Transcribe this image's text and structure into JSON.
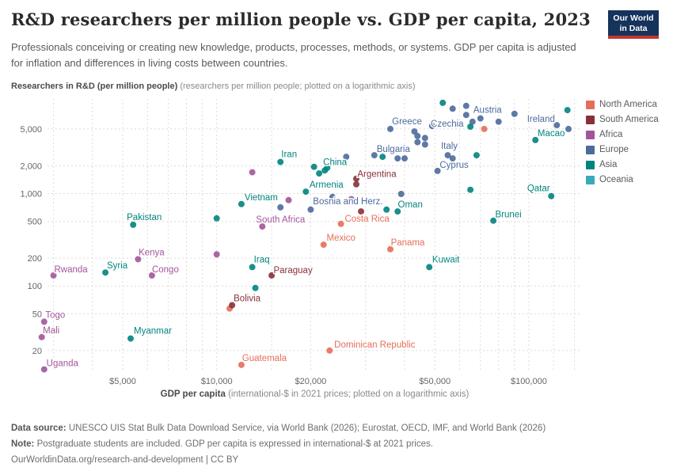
{
  "header": {
    "title": "R&D researchers per million people vs. GDP per capita, 2023",
    "subtitle": "Professionals conceiving or creating new knowledge, products, processes, methods, or systems. GDP per capita is adjusted for inflation and differences in living costs between countries."
  },
  "logo": {
    "line1": "Our World",
    "line2": "in Data"
  },
  "axis_titles": {
    "y_bold": "Researchers in R&D (per million people)",
    "y_note": " (researchers per million people; plotted on a logarithmic axis)",
    "x_bold": "GDP per capita",
    "x_note": " (international-$ in 2021 prices; plotted on a logarithmic axis)"
  },
  "footer": {
    "source_label": "Data source:",
    "source_text": " UNESCO UIS Stat Bulk Data Download Service, via World Bank (2026); Eurostat, OECD, IMF, and World Bank (2026)",
    "note_label": "Note:",
    "note_text": " Postgraduate students are included. GDP per capita is expressed in international-$ at 2021 prices.",
    "license": "OurWorldinData.org/research-and-development | CC BY"
  },
  "chart_data": {
    "type": "scatter",
    "title": "R&D researchers per million people vs. GDP per capita, 2023",
    "xlabel": "GDP per capita (international-$ in 2021 prices)",
    "ylabel": "Researchers in R&D (per million people)",
    "x_scale": "log",
    "y_scale": "log",
    "x_domain": [
      2870,
      148000
    ],
    "y_domain": [
      11.7,
      10570
    ],
    "grid": true,
    "legend_position": "right",
    "x_ticks": [
      {
        "v": 5000,
        "label": "$5,000"
      },
      {
        "v": 10000,
        "label": "$10,000"
      },
      {
        "v": 20000,
        "label": "$20,000"
      },
      {
        "v": 50000,
        "label": "$50,000"
      },
      {
        "v": 100000,
        "label": "$100,000"
      }
    ],
    "y_ticks": [
      {
        "v": 20,
        "label": "20"
      },
      {
        "v": 50,
        "label": "50"
      },
      {
        "v": 100,
        "label": "100"
      },
      {
        "v": 200,
        "label": "200"
      },
      {
        "v": 500,
        "label": "500"
      },
      {
        "v": 1000,
        "label": "1,000"
      },
      {
        "v": 2000,
        "label": "2,000"
      },
      {
        "v": 5000,
        "label": "5,000"
      }
    ],
    "x_gridlines": [
      3000,
      4000,
      5000,
      6000,
      7000,
      8000,
      9000,
      10000,
      15000,
      20000,
      30000,
      40000,
      50000,
      60000,
      70000,
      80000,
      90000,
      100000,
      120000,
      140000
    ],
    "regions": [
      {
        "name": "North America",
        "color": "#e56e5a",
        "points": [
          {
            "label": "Costa Rica",
            "gdp": 25000,
            "res": 470,
            "lox": 33,
            "loy": -7
          },
          {
            "label": "Mexico",
            "gdp": 22000,
            "res": 280,
            "lox": 22,
            "loy": -9
          },
          {
            "label": "Panama",
            "gdp": 36000,
            "res": 250,
            "lox": 22,
            "loy": -9
          },
          {
            "label": "Guatemala",
            "gdp": 12000,
            "res": 14,
            "lox": 29,
            "loy": -9
          },
          {
            "label": "Dominican Republic",
            "gdp": 23000,
            "res": 20,
            "lox": 57,
            "loy": -8
          },
          {
            "gdp": 72000,
            "res": 5000
          },
          {
            "gdp": 11000,
            "res": 57
          }
        ]
      },
      {
        "name": "South America",
        "color": "#883039",
        "points": [
          {
            "label": "Argentina",
            "gdp": 28000,
            "res": 1450,
            "lox": 26,
            "loy": -6
          },
          {
            "label": "Paraguay",
            "gdp": 15000,
            "res": 130,
            "lox": 27,
            "loy": -7
          },
          {
            "label": "Bolivia",
            "gdp": 11200,
            "res": 62,
            "lox": 19,
            "loy": -9
          },
          {
            "gdp": 28000,
            "res": 1260
          },
          {
            "gdp": 29000,
            "res": 640
          }
        ]
      },
      {
        "name": "Africa",
        "color": "#a2559c",
        "points": [
          {
            "label": "South Africa",
            "gdp": 14000,
            "res": 440,
            "lox": 23,
            "loy": -9
          },
          {
            "label": "Kenya",
            "gdp": 5600,
            "res": 195,
            "lox": 17,
            "loy": -9
          },
          {
            "label": "Congo",
            "gdp": 6200,
            "res": 130,
            "lox": 17,
            "loy": -8
          },
          {
            "label": "Rwanda",
            "gdp": 3000,
            "res": 130,
            "lox": 22,
            "loy": -8
          },
          {
            "label": "Togo",
            "gdp": 2800,
            "res": 41,
            "lox": 14,
            "loy": -9
          },
          {
            "label": "Mali",
            "gdp": 2750,
            "res": 28,
            "lox": 12,
            "loy": -9
          },
          {
            "label": "Uganda",
            "gdp": 2800,
            "res": 12.5,
            "lox": 23,
            "loy": -8
          },
          {
            "gdp": 13000,
            "res": 1700
          },
          {
            "gdp": 17000,
            "res": 850
          },
          {
            "gdp": 27000,
            "res": 870
          },
          {
            "gdp": 10000,
            "res": 220
          }
        ]
      },
      {
        "name": "Europe",
        "color": "#4c6a9c",
        "points": [
          {
            "label": "Austria",
            "gdp": 70000,
            "res": 6500,
            "lox": 9,
            "loy": -11
          },
          {
            "label": "Ireland",
            "gdp": 123000,
            "res": 5500,
            "lox": -20,
            "loy": -8
          },
          {
            "label": "Greece",
            "gdp": 36000,
            "res": 5000,
            "lox": 21,
            "loy": -10
          },
          {
            "label": "Czechia",
            "gdp": 49000,
            "res": 5400,
            "lox": 19,
            "loy": -3
          },
          {
            "label": "Bulgaria",
            "gdp": 32000,
            "res": 2600,
            "lox": 24,
            "loy": -8
          },
          {
            "label": "Italy",
            "gdp": 55000,
            "res": 2600,
            "lox": 2,
            "loy": -12
          },
          {
            "label": "Cyprus",
            "gdp": 51000,
            "res": 1760,
            "lox": 21,
            "loy": -8
          },
          {
            "label": "Bosnia and Herz.",
            "gdp": 20000,
            "res": 670,
            "lox": 47,
            "loy": -11
          },
          {
            "gdp": 57000,
            "res": 8300
          },
          {
            "gdp": 63000,
            "res": 8900
          },
          {
            "gdp": 63000,
            "res": 7100
          },
          {
            "gdp": 66000,
            "res": 6000
          },
          {
            "gdp": 80000,
            "res": 6000
          },
          {
            "gdp": 90000,
            "res": 7300
          },
          {
            "gdp": 134000,
            "res": 5000
          },
          {
            "gdp": 43000,
            "res": 4700
          },
          {
            "gdp": 44000,
            "res": 4200
          },
          {
            "gdp": 44000,
            "res": 3600
          },
          {
            "gdp": 46500,
            "res": 4000
          },
          {
            "gdp": 46500,
            "res": 3400
          },
          {
            "gdp": 38000,
            "res": 2400
          },
          {
            "gdp": 40000,
            "res": 2400
          },
          {
            "gdp": 26000,
            "res": 2500
          },
          {
            "gdp": 57000,
            "res": 2400
          },
          {
            "gdp": 39000,
            "res": 990
          },
          {
            "gdp": 23500,
            "res": 920
          },
          {
            "gdp": 16000,
            "res": 710
          }
        ]
      },
      {
        "name": "Asia",
        "color": "#00847e",
        "points": [
          {
            "label": "Macao",
            "gdp": 105000,
            "res": 3800,
            "lox": 20,
            "loy": -9
          },
          {
            "label": "Iran",
            "gdp": 16000,
            "res": 2200,
            "lox": 11,
            "loy": -10
          },
          {
            "label": "China",
            "gdp": 22200,
            "res": 1780,
            "lox": 13,
            "loy": -11
          },
          {
            "label": "Armenia",
            "gdp": 19300,
            "res": 1050,
            "lox": 26,
            "loy": -9
          },
          {
            "label": "Vietnam",
            "gdp": 12000,
            "res": 770,
            "lox": 25,
            "loy": -9
          },
          {
            "label": "Pakistan",
            "gdp": 5400,
            "res": 460,
            "lox": 14,
            "loy": -10
          },
          {
            "label": "Oman",
            "gdp": 38000,
            "res": 640,
            "lox": 16,
            "loy": -9
          },
          {
            "label": "Brunei",
            "gdp": 77000,
            "res": 510,
            "lox": 19,
            "loy": -8
          },
          {
            "label": "Qatar",
            "gdp": 118000,
            "res": 940,
            "lox": -16,
            "loy": -10
          },
          {
            "label": "Kuwait",
            "gdp": 48000,
            "res": 160,
            "lox": 21,
            "loy": -10
          },
          {
            "label": "Iraq",
            "gdp": 13000,
            "res": 160,
            "lox": 12,
            "loy": -10
          },
          {
            "label": "Syria",
            "gdp": 4400,
            "res": 140,
            "lox": 15,
            "loy": -9
          },
          {
            "label": "Myanmar",
            "gdp": 5300,
            "res": 27,
            "lox": 28,
            "loy": -10
          },
          {
            "gdp": 53000,
            "res": 9600
          },
          {
            "gdp": 65000,
            "res": 5300
          },
          {
            "gdp": 133000,
            "res": 8000
          },
          {
            "gdp": 34000,
            "res": 2500
          },
          {
            "gdp": 68000,
            "res": 2600
          },
          {
            "gdp": 65000,
            "res": 1100
          },
          {
            "gdp": 20500,
            "res": 1950
          },
          {
            "gdp": 21300,
            "res": 1650
          },
          {
            "gdp": 22600,
            "res": 1900
          },
          {
            "gdp": 35000,
            "res": 670
          },
          {
            "gdp": 10000,
            "res": 540
          },
          {
            "gdp": 13300,
            "res": 95
          }
        ]
      },
      {
        "name": "Oceania",
        "color": "#38aaba",
        "points": []
      }
    ]
  }
}
